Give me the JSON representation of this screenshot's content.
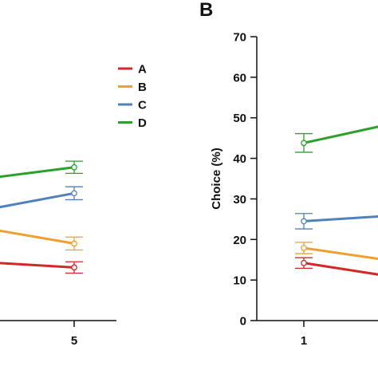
{
  "chart_data": [
    {
      "panel": "",
      "type": "line",
      "x": [
        5
      ],
      "xtick_labels": [
        "5"
      ],
      "ylabel": "",
      "legend": {
        "placement": "right",
        "entries": [
          "A",
          "B",
          "C",
          "D"
        ]
      },
      "series": [
        {
          "name": "A",
          "color": "#d62728",
          "points": [
            [
              -0.5,
              14.3
            ],
            [
              5,
              13.1
            ]
          ],
          "err": [
            0,
            1.4
          ]
        },
        {
          "name": "B",
          "color": "#f0a030",
          "points": [
            [
              -0.5,
              22.5
            ],
            [
              5,
              19.0
            ]
          ],
          "err": [
            0,
            1.6
          ]
        },
        {
          "name": "C",
          "color": "#4f81bd",
          "points": [
            [
              -0.5,
              27.6
            ],
            [
              5,
              31.4
            ]
          ],
          "err": [
            0,
            1.6
          ]
        },
        {
          "name": "D",
          "color": "#2ca02c",
          "points": [
            [
              -0.5,
              35.2
            ],
            [
              5,
              37.8
            ]
          ],
          "err": [
            0,
            1.5
          ]
        }
      ]
    },
    {
      "panel": "B",
      "type": "line",
      "x": [
        1
      ],
      "xtick_labels": [
        "1"
      ],
      "ylabel": "Choice (%)",
      "ylim": [
        0,
        70
      ],
      "yticks": [
        0,
        10,
        20,
        30,
        40,
        50,
        60,
        70
      ],
      "series": [
        {
          "name": "A",
          "color": "#d62728",
          "points": [
            [
              1,
              14.2
            ],
            [
              2.2,
              10.8
            ]
          ],
          "err": [
            1.3,
            0
          ]
        },
        {
          "name": "B",
          "color": "#f0a030",
          "points": [
            [
              1,
              17.9
            ],
            [
              2.2,
              14.7
            ]
          ],
          "err": [
            1.4,
            0
          ]
        },
        {
          "name": "C",
          "color": "#4f81bd",
          "points": [
            [
              1,
              24.5
            ],
            [
              2.2,
              25.9
            ]
          ],
          "err": [
            1.9,
            0
          ]
        },
        {
          "name": "D",
          "color": "#2ca02c",
          "points": [
            [
              1,
              43.8
            ],
            [
              2.2,
              48.6
            ]
          ],
          "err": [
            2.3,
            0
          ]
        }
      ]
    }
  ]
}
